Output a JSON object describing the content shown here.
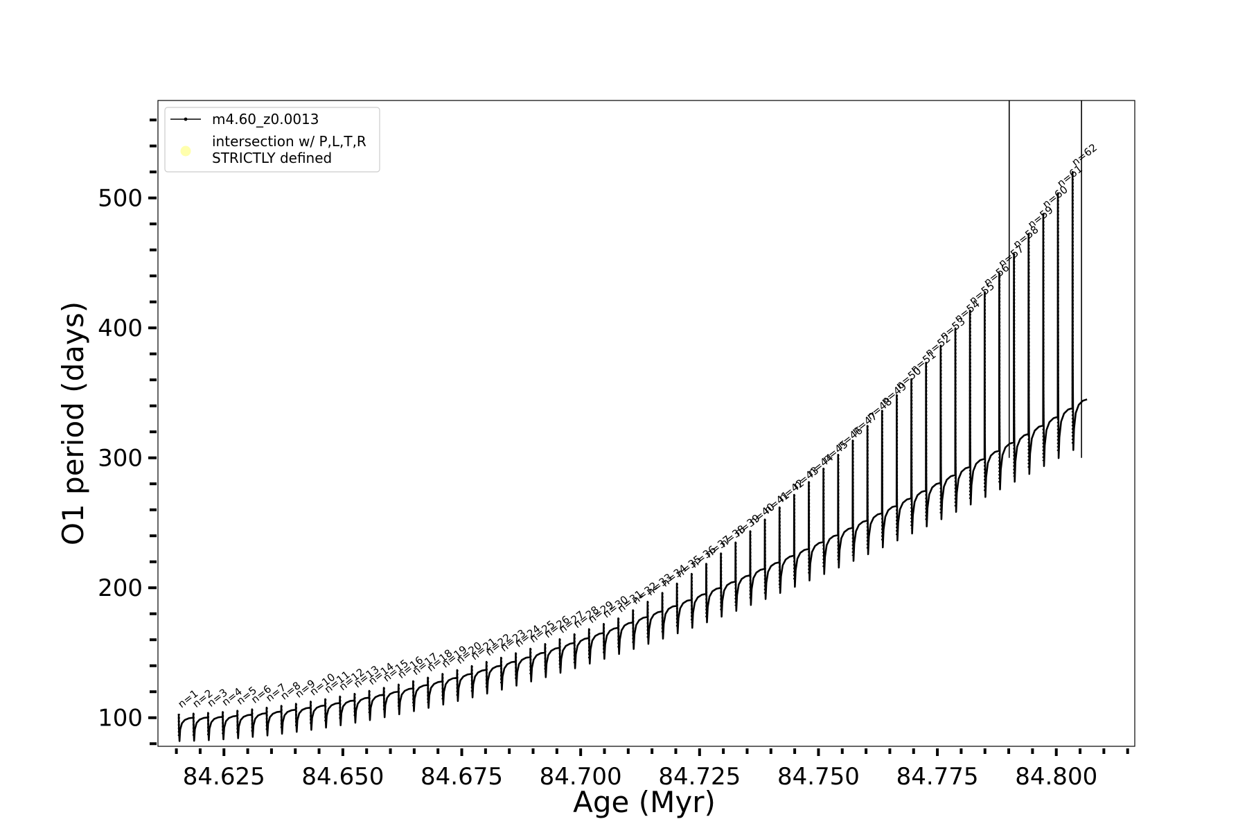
{
  "chart_data": {
    "type": "line",
    "xlabel": "Age (Myr)",
    "ylabel": "O1 period (days)",
    "xlim": [
      84.612,
      84.8165
    ],
    "ylim": [
      78,
      575
    ],
    "x_ticks": [
      "84.625",
      "84.650",
      "84.675",
      "84.700",
      "84.725",
      "84.750",
      "84.775",
      "84.800"
    ],
    "x_tick_values": [
      84.625,
      84.65,
      84.675,
      84.7,
      84.725,
      84.75,
      84.775,
      84.8
    ],
    "y_ticks": [
      "100",
      "200",
      "300",
      "400",
      "500"
    ],
    "y_tick_values": [
      100,
      200,
      300,
      400,
      500
    ],
    "minor_tick_step_x": 0.005,
    "minor_tick_step_y": 20,
    "grid": false,
    "legend": {
      "placement": "top-left",
      "entries": [
        {
          "label": "m4.60_z0.0013",
          "marker": "line-dot",
          "color": "#000000"
        },
        {
          "label_line1": "intersection w/ P,L,T,R",
          "label_line2": "STRICTLY defined",
          "marker": "circle",
          "color": "#ffff99"
        }
      ]
    },
    "series": [
      {
        "name": "m4.60_z0.0013",
        "color": "#000000",
        "pulse_count": 62,
        "age_start": 84.6155,
        "age_end": 84.8065,
        "base_start": 86,
        "base_end": 310,
        "plateau_start": 100,
        "plateau_end": 345,
        "spike_start": 100,
        "spike_end": 520
      }
    ],
    "spikes_to_top": [
      84.7901,
      84.8053
    ],
    "pulse_labels": [
      "n=1",
      "n=2",
      "n=3",
      "n=4",
      "n=5",
      "n=6",
      "n=7",
      "n=8",
      "n=9",
      "n=10",
      "n=11",
      "n=12",
      "n=13",
      "n=14",
      "n=15",
      "n=16",
      "n=17",
      "n=18",
      "n=19",
      "n=20",
      "n=21",
      "n=22",
      "n=23",
      "n=24",
      "n=25",
      "n=26",
      "n=27",
      "n=28",
      "n=29",
      "n=30",
      "n=31",
      "n=32",
      "n=33",
      "n=34",
      "n=35",
      "n=36",
      "n=37",
      "n=38",
      "n=39",
      "n=40",
      "n=41",
      "n=42",
      "n=43",
      "n=44",
      "n=45",
      "n=46",
      "n=47",
      "n=48",
      "n=49",
      "n=50",
      "n=51",
      "n=52",
      "n=53",
      "n=54",
      "n=55",
      "n=56",
      "n=57",
      "n=58",
      "n=59",
      "n=60",
      "n=61",
      "n=62"
    ]
  }
}
